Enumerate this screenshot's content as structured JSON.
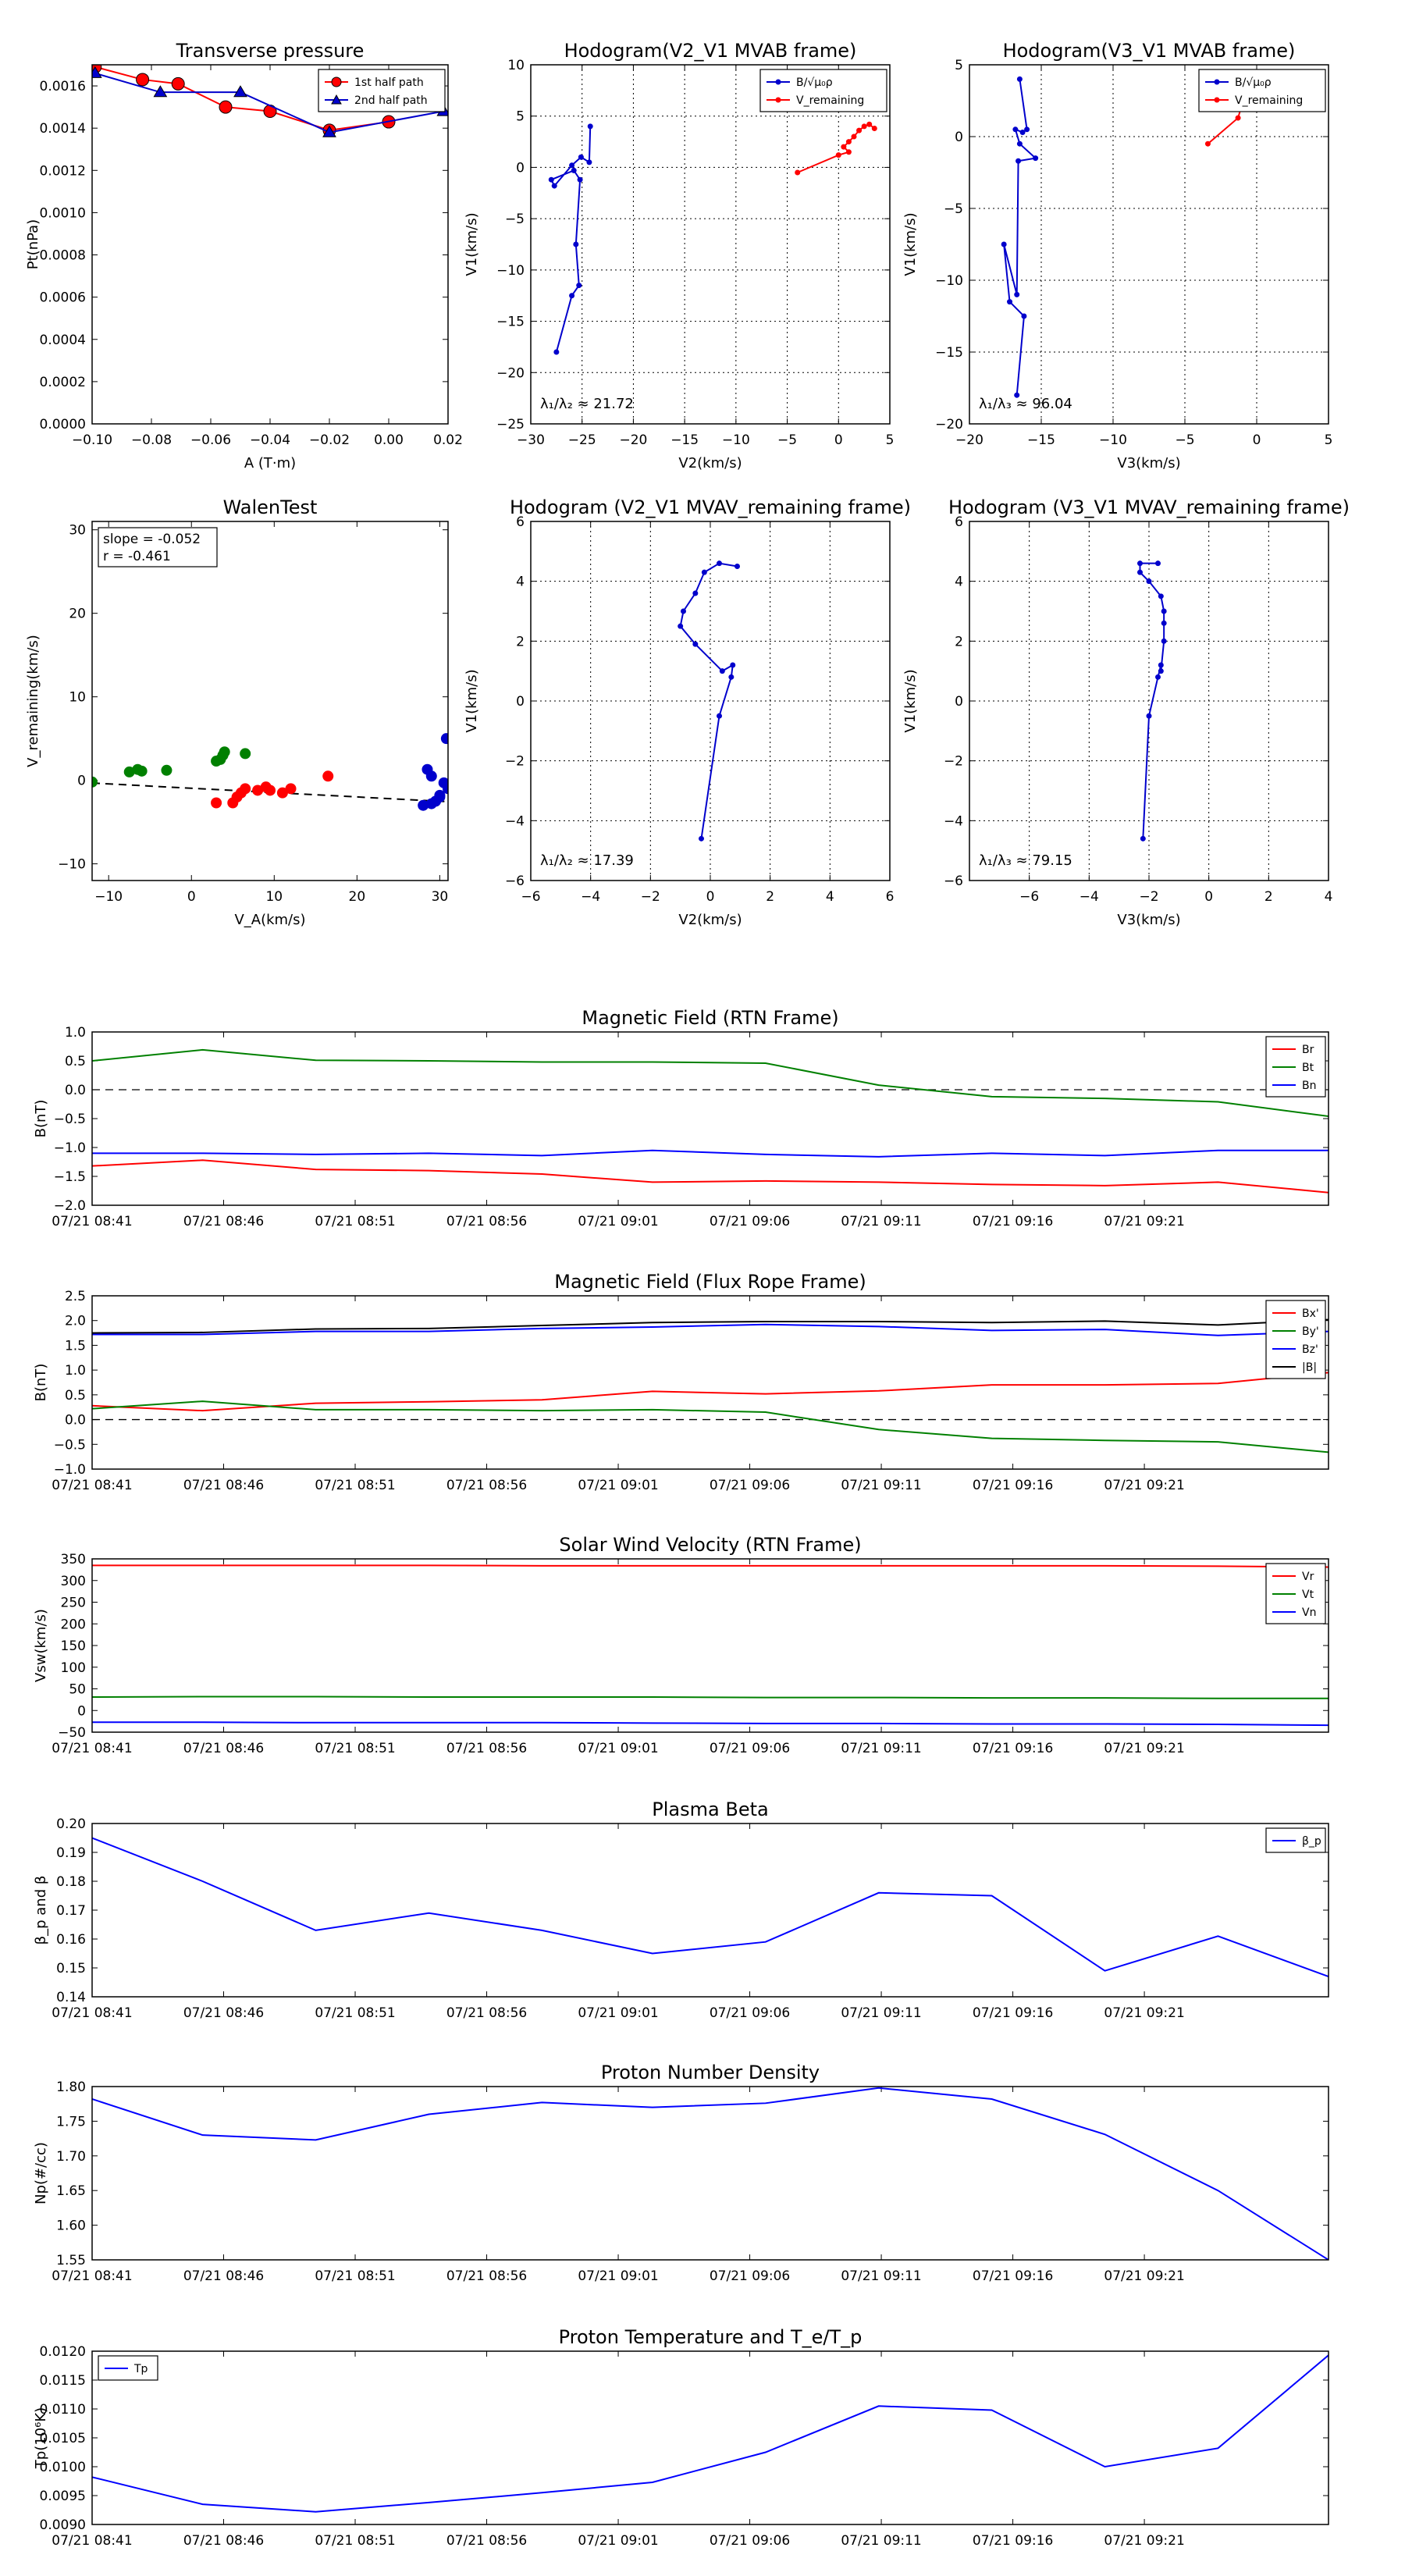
{
  "chart_data": [
    {
      "id": "tp",
      "type": "scatter",
      "title": "Transverse pressure",
      "xlabel": "A (T·m)",
      "ylabel": "Pt(nPa)",
      "xlim": [
        -0.1,
        0.02
      ],
      "ylim": [
        0,
        0.0017
      ],
      "xticks": [
        -0.1,
        -0.08,
        -0.06,
        -0.04,
        -0.02,
        0.0,
        0.02
      ],
      "xtick_labels": [
        "−0.10",
        "−0.08",
        "−0.06",
        "−0.04",
        "−0.02",
        "0.00",
        "0.02"
      ],
      "yticks": [
        0,
        0.0002,
        0.0004,
        0.0006,
        0.0008,
        0.001,
        0.0012,
        0.0014,
        0.0016
      ],
      "ytick_labels": [
        "0.0000",
        "0.0002",
        "0.0004",
        "0.0006",
        "0.0008",
        "0.0010",
        "0.0012",
        "0.0014",
        "0.0016"
      ],
      "grid": false,
      "legend_position": "top-right",
      "series": [
        {
          "name": "1st half path",
          "color": "#ff0000",
          "marker": "circle",
          "x": [
            -0.099,
            -0.083,
            -0.071,
            -0.055,
            -0.04,
            -0.02,
            0.0
          ],
          "y": [
            0.00169,
            0.00163,
            0.00161,
            0.0015,
            0.00148,
            0.00139,
            0.00143
          ]
        },
        {
          "name": "2nd half path",
          "color": "#0000cc",
          "marker": "triangle",
          "x": [
            -0.099,
            -0.077,
            -0.05,
            -0.02,
            0.0185
          ],
          "y": [
            0.00166,
            0.00157,
            0.00157,
            0.00138,
            0.00148
          ]
        }
      ]
    },
    {
      "id": "h1",
      "type": "line",
      "title": "Hodogram(V2_V1 MVAB frame)",
      "xlabel": "V2(km/s)",
      "ylabel": "V1(km/s)",
      "xlim": [
        -30,
        5
      ],
      "ylim": [
        -25,
        10
      ],
      "xticks": [
        -30,
        -25,
        -20,
        -15,
        -10,
        -5,
        0,
        5
      ],
      "xtick_labels": [
        "−30",
        "−25",
        "−20",
        "−15",
        "−10",
        "−5",
        "0",
        "5"
      ],
      "yticks": [
        -25,
        -20,
        -15,
        -10,
        -5,
        0,
        5,
        10
      ],
      "ytick_labels": [
        "−25",
        "−20",
        "−15",
        "−10",
        "−5",
        "0",
        "5",
        "10"
      ],
      "grid": true,
      "legend_position": "top-right",
      "annotation": "λ₁/λ₂ ≈ 21.72",
      "series": [
        {
          "name": "B/√μ₀ρ",
          "color": "#0000cc",
          "x": [
            -27.5,
            -26,
            -25.3,
            -25.6,
            -25.2,
            -25.8,
            -28,
            -27.7,
            -26.0,
            -25.1,
            -24.3,
            -24.2
          ],
          "y": [
            -18.0,
            -12.5,
            -11.5,
            -7.5,
            -1.2,
            -0.3,
            -1.2,
            -1.8,
            0.2,
            1.0,
            0.5,
            4.0
          ]
        },
        {
          "name": "V_remaining",
          "color": "#ff0000",
          "x": [
            -4.0,
            0.0,
            1.0,
            0.5,
            1.0,
            1.5,
            2.0,
            2.5,
            3.0,
            3.5
          ],
          "y": [
            -0.5,
            1.2,
            1.5,
            2.0,
            2.5,
            3.0,
            3.6,
            4.0,
            4.2,
            3.8
          ]
        }
      ]
    },
    {
      "id": "h2",
      "type": "line",
      "title": "Hodogram(V3_V1 MVAB frame)",
      "xlabel": "V3(km/s)",
      "ylabel": "V1(km/s)",
      "xlim": [
        -20,
        5
      ],
      "ylim": [
        -20,
        5
      ],
      "xticks": [
        -20,
        -15,
        -10,
        -5,
        0,
        5
      ],
      "xtick_labels": [
        "−20",
        "−15",
        "−10",
        "−5",
        "0",
        "5"
      ],
      "yticks": [
        -20,
        -15,
        -10,
        -5,
        0,
        5
      ],
      "ytick_labels": [
        "−20",
        "−15",
        "−10",
        "−5",
        "0",
        "5"
      ],
      "grid": true,
      "legend_position": "top-right",
      "annotation": "λ₁/λ₃ ≈ 96.04",
      "series": [
        {
          "name": "B/√μ₀ρ",
          "color": "#0000cc",
          "x": [
            -16.7,
            -16.2,
            -17.2,
            -17.6,
            -16.7,
            -16.6,
            -15.4,
            -16.5,
            -16.8,
            -16.3,
            -16.0,
            -16.5
          ],
          "y": [
            -18.0,
            -12.5,
            -11.5,
            -7.5,
            -11.0,
            -1.7,
            -1.5,
            -0.5,
            0.5,
            0.3,
            0.5,
            4.0
          ]
        },
        {
          "name": "V_remaining",
          "color": "#ff0000",
          "x": [
            -3.4,
            -1.3,
            -1.0,
            -0.6
          ],
          "y": [
            -0.5,
            1.3,
            2.3,
            3.5
          ]
        }
      ]
    },
    {
      "id": "walen",
      "type": "scatter",
      "title": "WalenTest",
      "xlabel": "V_A(km/s)",
      "ylabel": "V_remaining(km/s)",
      "xlim": [
        -12,
        31
      ],
      "ylim": [
        -12,
        31
      ],
      "xticks": [
        -10,
        0,
        10,
        20,
        30
      ],
      "xtick_labels": [
        "−10",
        "0",
        "10",
        "20",
        "30"
      ],
      "yticks": [
        -10,
        0,
        10,
        20,
        30
      ],
      "ytick_labels": [
        "−10",
        "0",
        "10",
        "20",
        "30"
      ],
      "grid": false,
      "annotation": [
        "slope = -0.052",
        "r = -0.461"
      ],
      "fit": {
        "slope": -0.052,
        "intercept": -0.95
      },
      "series": [
        {
          "color": "#008000",
          "x": [
            -12,
            -7.5,
            -6.5,
            -6.0,
            -3.0,
            3.0,
            3.5,
            3.8,
            4.0,
            6.5
          ],
          "y": [
            -0.2,
            1.0,
            1.3,
            1.1,
            1.2,
            2.3,
            2.5,
            3.0,
            3.4,
            3.2
          ]
        },
        {
          "color": "#ff0000",
          "x": [
            3.0,
            5.0,
            5.5,
            6.0,
            6.5,
            8.0,
            9.0,
            9.5,
            11.0,
            12.0,
            16.5
          ],
          "y": [
            -2.7,
            -2.7,
            -2.0,
            -1.5,
            -1.0,
            -1.2,
            -0.8,
            -1.2,
            -1.5,
            -1.0,
            0.5
          ]
        },
        {
          "color": "#0000cc",
          "x": [
            28.0,
            28.5,
            29.0,
            29.5,
            30.0,
            30.5,
            30.8,
            31.0,
            30.0,
            29.0
          ],
          "y": [
            -3.0,
            1.3,
            0.5,
            -2.5,
            -1.8,
            -0.3,
            5.0,
            -1.0,
            -2.0,
            -2.8
          ]
        }
      ]
    },
    {
      "id": "h3",
      "type": "line",
      "title": "Hodogram (V2_V1 MVAV_remaining frame)",
      "xlabel": "V2(km/s)",
      "ylabel": "V1(km/s)",
      "xlim": [
        -6,
        6
      ],
      "ylim": [
        -6,
        6
      ],
      "xticks": [
        -6,
        -4,
        -2,
        0,
        2,
        4,
        6
      ],
      "xtick_labels": [
        "−6",
        "−4",
        "−2",
        "0",
        "2",
        "4",
        "6"
      ],
      "yticks": [
        -6,
        -4,
        -2,
        0,
        2,
        4,
        6
      ],
      "ytick_labels": [
        "−6",
        "−4",
        "−2",
        "0",
        "2",
        "4",
        "6"
      ],
      "grid": true,
      "annotation": "λ₁/λ₂ ≈ 17.39",
      "series": [
        {
          "color": "#0000cc",
          "x": [
            -0.3,
            0.3,
            0.7,
            0.75,
            0.4,
            -0.5,
            -1.0,
            -0.9,
            -0.5,
            -0.2,
            0.3,
            0.9
          ],
          "y": [
            -4.6,
            -0.5,
            0.8,
            1.2,
            1.0,
            1.9,
            2.5,
            3.0,
            3.6,
            4.3,
            4.6,
            4.5
          ]
        }
      ]
    },
    {
      "id": "h4",
      "type": "line",
      "title": "Hodogram (V3_V1 MVAV_remaining frame)",
      "xlabel": "V3(km/s)",
      "ylabel": "V1(km/s)",
      "xlim": [
        -8,
        4
      ],
      "ylim": [
        -6,
        6
      ],
      "xticks": [
        -6,
        -4,
        -2,
        0,
        2,
        4
      ],
      "xtick_labels": [
        "−6",
        "−4",
        "−2",
        "0",
        "2",
        "4"
      ],
      "yticks": [
        -6,
        -4,
        -2,
        0,
        2,
        4,
        6
      ],
      "ytick_labels": [
        "−6",
        "−4",
        "−2",
        "0",
        "2",
        "4",
        "6"
      ],
      "grid": true,
      "annotation": "λ₁/λ₃ ≈ 79.15",
      "series": [
        {
          "color": "#0000cc",
          "x": [
            -2.2,
            -2.0,
            -1.7,
            -1.6,
            -1.6,
            -1.5,
            -1.5,
            -1.5,
            -1.6,
            -2.0,
            -2.3,
            -2.3,
            -1.7
          ],
          "y": [
            -4.6,
            -0.5,
            0.8,
            1.2,
            1.0,
            2.0,
            2.6,
            3.0,
            3.5,
            4.0,
            4.3,
            4.6,
            4.6
          ]
        }
      ]
    },
    {
      "id": "bf_rtn",
      "type": "line",
      "title": "Magnetic Field (RTN Frame)",
      "ylabel": "B(nT)",
      "xlim": [
        0,
        47
      ],
      "ylim": [
        -2.0,
        1.0
      ],
      "yticks": [
        -2.0,
        -1.5,
        -1.0,
        -0.5,
        0.0,
        0.5,
        1.0
      ],
      "ytick_labels": [
        "−2.0",
        "−1.5",
        "−1.0",
        "−0.5",
        "0.0",
        "0.5",
        "1.0"
      ],
      "zero_line": true,
      "legend_position": "top-right",
      "x": [
        0,
        4.2,
        8.5,
        12.8,
        17.1,
        21.3,
        25.6,
        29.9,
        34.2,
        38.5,
        42.8,
        47
      ],
      "series": [
        {
          "name": "Br",
          "color": "#ff0000",
          "values": [
            -1.32,
            -1.22,
            -1.38,
            -1.4,
            -1.46,
            -1.6,
            -1.58,
            -1.6,
            -1.64,
            -1.66,
            -1.6,
            -1.78
          ]
        },
        {
          "name": "Bt",
          "color": "#008000",
          "values": [
            0.5,
            0.69,
            0.51,
            0.5,
            0.48,
            0.48,
            0.46,
            0.08,
            -0.12,
            -0.15,
            -0.21,
            -0.46
          ]
        },
        {
          "name": "Bn",
          "color": "#0000ff",
          "values": [
            -1.1,
            -1.1,
            -1.12,
            -1.1,
            -1.14,
            -1.05,
            -1.12,
            -1.16,
            -1.1,
            -1.14,
            -1.05,
            -1.05
          ]
        }
      ]
    },
    {
      "id": "bf_fr",
      "type": "line",
      "title": "Magnetic Field (Flux Rope Frame)",
      "ylabel": "B(nT)",
      "xlim": [
        0,
        47
      ],
      "ylim": [
        -1.0,
        2.5
      ],
      "yticks": [
        -1.0,
        -0.5,
        0.0,
        0.5,
        1.0,
        1.5,
        2.0,
        2.5
      ],
      "ytick_labels": [
        "−1.0",
        "−0.5",
        "0.0",
        "0.5",
        "1.0",
        "1.5",
        "2.0",
        "2.5"
      ],
      "zero_line": true,
      "legend_position": "top-right",
      "x": [
        0,
        4.2,
        8.5,
        12.8,
        17.1,
        21.3,
        25.6,
        29.9,
        34.2,
        38.5,
        42.8,
        47
      ],
      "series": [
        {
          "name": "Bx'",
          "color": "#ff0000",
          "values": [
            0.28,
            0.18,
            0.33,
            0.36,
            0.4,
            0.57,
            0.52,
            0.58,
            0.7,
            0.7,
            0.73,
            0.95
          ]
        },
        {
          "name": "By'",
          "color": "#008000",
          "values": [
            0.22,
            0.37,
            0.2,
            0.2,
            0.18,
            0.2,
            0.15,
            -0.2,
            -0.38,
            -0.42,
            -0.45,
            -0.66
          ]
        },
        {
          "name": "Bz'",
          "color": "#0000ff",
          "values": [
            1.72,
            1.72,
            1.78,
            1.78,
            1.84,
            1.87,
            1.92,
            1.88,
            1.8,
            1.82,
            1.7,
            1.78
          ]
        },
        {
          "name": "|B|",
          "color": "#000000",
          "values": [
            1.75,
            1.76,
            1.83,
            1.84,
            1.9,
            1.96,
            1.98,
            1.98,
            1.96,
            1.99,
            1.91,
            2.02
          ]
        }
      ]
    },
    {
      "id": "vsw",
      "type": "line",
      "title": "Solar Wind Velocity (RTN Frame)",
      "ylabel": "Vsw(km/s)",
      "xlim": [
        0,
        47
      ],
      "ylim": [
        -50,
        350
      ],
      "yticks": [
        -50,
        0,
        50,
        100,
        150,
        200,
        250,
        300,
        350
      ],
      "ytick_labels": [
        "−50",
        "0",
        "50",
        "100",
        "150",
        "200",
        "250",
        "300",
        "350"
      ],
      "legend_position": "top-right",
      "x": [
        0,
        4.2,
        8.5,
        12.8,
        17.1,
        21.3,
        25.6,
        29.9,
        34.2,
        38.5,
        42.8,
        47
      ],
      "series": [
        {
          "name": "Vr",
          "color": "#ff0000",
          "values": [
            335,
            335,
            335,
            335,
            334,
            334,
            334,
            334,
            334,
            334,
            333,
            331
          ]
        },
        {
          "name": "Vt",
          "color": "#008000",
          "values": [
            31,
            32,
            32,
            31,
            31,
            31,
            30,
            30,
            29,
            29,
            28,
            28
          ]
        },
        {
          "name": "Vn",
          "color": "#0000ff",
          "values": [
            -27,
            -27,
            -28,
            -28,
            -28,
            -29,
            -30,
            -30,
            -31,
            -31,
            -32,
            -34
          ]
        }
      ]
    },
    {
      "id": "beta",
      "type": "line",
      "title": "Plasma Beta",
      "ylabel": "β_p and β",
      "xlim": [
        0,
        47
      ],
      "ylim": [
        0.14,
        0.2
      ],
      "yticks": [
        0.14,
        0.15,
        0.16,
        0.17,
        0.18,
        0.19,
        0.2
      ],
      "ytick_labels": [
        "0.14",
        "0.15",
        "0.16",
        "0.17",
        "0.18",
        "0.19",
        "0.20"
      ],
      "legend_position": "top-right",
      "x": [
        0,
        4.2,
        8.5,
        12.8,
        17.1,
        21.3,
        25.6,
        29.9,
        34.2,
        38.5,
        42.8,
        47
      ],
      "series": [
        {
          "name": "β_p",
          "color": "#0000ff",
          "values": [
            0.195,
            0.18,
            0.163,
            0.169,
            0.163,
            0.155,
            0.159,
            0.176,
            0.175,
            0.149,
            0.161,
            0.147
          ]
        }
      ]
    },
    {
      "id": "np",
      "type": "line",
      "title": "Proton Number Density",
      "ylabel": "Np(#/cc)",
      "xlim": [
        0,
        47
      ],
      "ylim": [
        1.55,
        1.8
      ],
      "yticks": [
        1.55,
        1.6,
        1.65,
        1.7,
        1.75,
        1.8
      ],
      "ytick_labels": [
        "1.55",
        "1.60",
        "1.65",
        "1.70",
        "1.75",
        "1.80"
      ],
      "x": [
        0,
        4.2,
        8.5,
        12.8,
        17.1,
        21.3,
        25.6,
        29.9,
        34.2,
        38.5,
        42.8,
        47
      ],
      "series": [
        {
          "name": "Np",
          "color": "#0000ff",
          "values": [
            1.782,
            1.73,
            1.723,
            1.76,
            1.777,
            1.77,
            1.776,
            1.798,
            1.782,
            1.731,
            1.65,
            1.55
          ]
        }
      ]
    },
    {
      "id": "tpk",
      "type": "line",
      "title": "Proton Temperature and T_e/T_p",
      "ylabel": "Tp(10⁶K)",
      "xlim": [
        0,
        47
      ],
      "ylim": [
        0.009,
        0.012
      ],
      "yticks": [
        0.009,
        0.0095,
        0.01,
        0.0105,
        0.011,
        0.0115,
        0.012
      ],
      "ytick_labels": [
        "0.0090",
        "0.0095",
        "0.0100",
        "0.0105",
        "0.0110",
        "0.0115",
        "0.0120"
      ],
      "legend_position": "top-left",
      "x": [
        0,
        4.2,
        8.5,
        12.8,
        17.1,
        21.3,
        25.6,
        29.9,
        34.2,
        38.5,
        42.8,
        47
      ],
      "series": [
        {
          "name": "Tp",
          "color": "#0000ff",
          "values": [
            0.00982,
            0.00935,
            0.00922,
            0.00938,
            0.00955,
            0.00973,
            0.01025,
            0.01105,
            0.01098,
            0.01,
            0.01032,
            0.01193
          ]
        }
      ]
    }
  ],
  "time_axis": {
    "ticks": [
      0,
      5,
      10,
      15,
      20,
      25,
      30,
      35,
      40
    ],
    "labels": [
      "07/21 08:41",
      "07/21 08:46",
      "07/21 08:51",
      "07/21 08:56",
      "07/21 09:01",
      "07/21 09:06",
      "07/21 09:11",
      "07/21 09:16",
      "07/21 09:21"
    ]
  }
}
